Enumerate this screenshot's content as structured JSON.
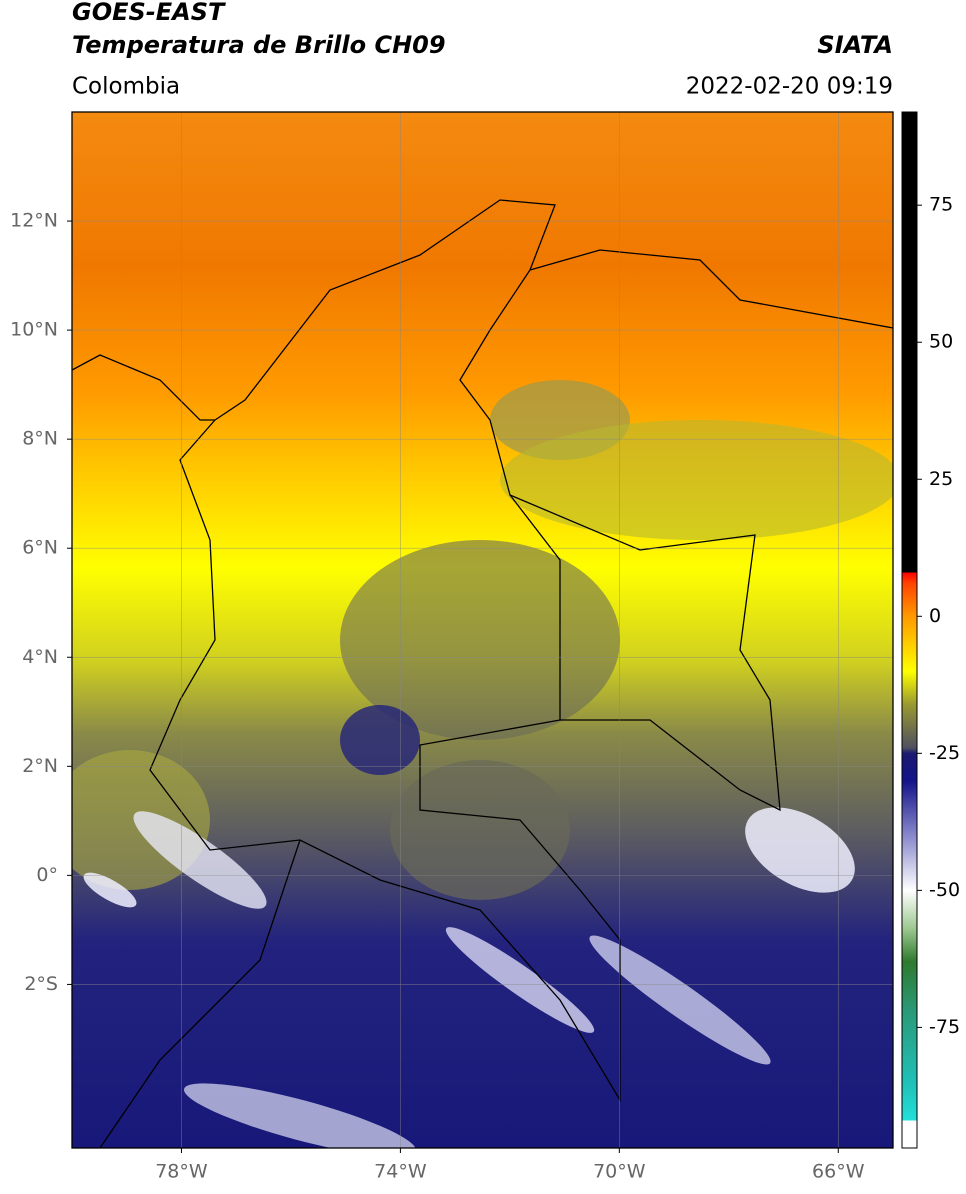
{
  "header": {
    "title": "GOES-EAST",
    "subtitle": "Temperatura de Brillo CH09",
    "source": "SIATA",
    "region": "Colombia",
    "timestamp": "2022-02-20 09:19"
  },
  "map": {
    "lonlim": [
      -80,
      -65
    ],
    "latlim": [
      -5,
      14
    ],
    "grid": true,
    "xticks": [
      {
        "value": -78,
        "label": "78°W"
      },
      {
        "value": -74,
        "label": "74°W"
      },
      {
        "value": -70,
        "label": "70°W"
      },
      {
        "value": -66,
        "label": "66°W"
      }
    ],
    "yticks": [
      {
        "value": 12,
        "label": "12°N"
      },
      {
        "value": 10,
        "label": "10°N"
      },
      {
        "value": 8,
        "label": "8°N"
      },
      {
        "value": 6,
        "label": "6°N"
      },
      {
        "value": 4,
        "label": "4°N"
      },
      {
        "value": 2,
        "label": "2°N"
      },
      {
        "value": 0,
        "label": "0°"
      },
      {
        "value": -2,
        "label": "2°S"
      }
    ]
  },
  "colorbar": {
    "lim": [
      -97,
      92
    ],
    "ticks": [
      75,
      50,
      25,
      0,
      -25,
      -50,
      -75
    ],
    "colormap": [
      {
        "value": -97,
        "color": "#ffffff"
      },
      {
        "value": -92,
        "color": "#ffffff"
      },
      {
        "value": -92,
        "color": "#22e0d8"
      },
      {
        "value": -85,
        "color": "#20c0b8"
      },
      {
        "value": -72,
        "color": "#2a9a78"
      },
      {
        "value": -63,
        "color": "#2e7a2e"
      },
      {
        "value": -57,
        "color": "#9cc890"
      },
      {
        "value": -50,
        "color": "#ffffff"
      },
      {
        "value": -40,
        "color": "#8888cc"
      },
      {
        "value": -30,
        "color": "#14148a"
      },
      {
        "value": -25,
        "color": "#1a1a70"
      },
      {
        "value": -24,
        "color": "#505060"
      },
      {
        "value": -16,
        "color": "#9a9a30"
      },
      {
        "value": -10,
        "color": "#ffff00"
      },
      {
        "value": 0,
        "color": "#ff9900"
      },
      {
        "value": 6,
        "color": "#ff4400"
      },
      {
        "value": 8,
        "color": "#ff0000"
      },
      {
        "value": 8,
        "color": "#000000"
      },
      {
        "value": 92,
        "color": "#000000"
      }
    ]
  }
}
